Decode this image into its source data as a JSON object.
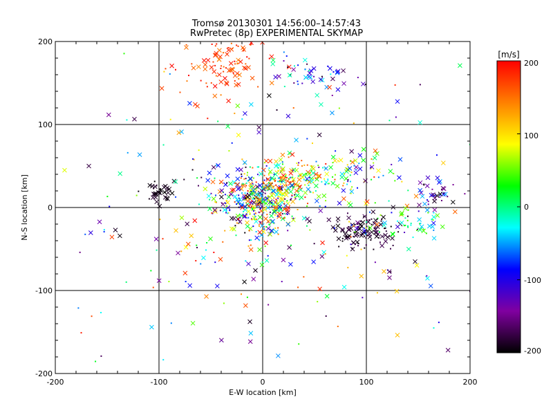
{
  "chart_data": {
    "type": "scatter",
    "title": "Tromsø 20130301 14:56:00–14:57:43",
    "subtitle": "RwPretec (8p) EXPERIMENTAL SKYMAP",
    "xlabel": "E-W location [km]",
    "ylabel": "N-S location [km]",
    "xlim": [
      -200,
      200
    ],
    "ylim": [
      -200,
      200
    ],
    "x_ticks": [
      -200,
      -100,
      0,
      100,
      200
    ],
    "y_ticks": [
      -200,
      -100,
      0,
      100,
      200
    ],
    "x_tick_labels": [
      "-200",
      "-100",
      "0",
      "100",
      "200"
    ],
    "y_tick_labels": [
      "-200",
      "-100",
      "0",
      "100",
      "200"
    ],
    "grid": true,
    "marker_style": "cross (large) and dot (small)",
    "colorbar": {
      "label": "[m/s]",
      "range": [
        -200,
        200
      ],
      "ticks": [
        200,
        100,
        0,
        -100,
        -200
      ],
      "tick_labels": [
        "200",
        "100",
        "0",
        "-100",
        "-200"
      ],
      "colors": [
        "#000000",
        "#8000a0",
        "#0000ff",
        "#00ffff",
        "#00ff00",
        "#ffff00",
        "#ff8000",
        "#ff0000"
      ],
      "placement": "right"
    },
    "clusters": [
      {
        "x": -5,
        "y": 8,
        "sx": 20,
        "sy": 18,
        "n": 380,
        "vmin": -200,
        "vmax": 200
      },
      {
        "x": 25,
        "y": 35,
        "sx": 22,
        "sy": 12,
        "n": 160,
        "vmin": -60,
        "vmax": 200
      },
      {
        "x": 95,
        "y": -28,
        "sx": 14,
        "sy": 10,
        "n": 110,
        "vmin": -200,
        "vmax": -170
      },
      {
        "x": 120,
        "y": -22,
        "sx": 25,
        "sy": 14,
        "n": 40,
        "vmin": -200,
        "vmax": 180
      },
      {
        "x": -35,
        "y": 175,
        "sx": 22,
        "sy": 18,
        "n": 110,
        "vmin": 140,
        "vmax": 200
      },
      {
        "x": 45,
        "y": 160,
        "sx": 20,
        "sy": 10,
        "n": 50,
        "vmin": -200,
        "vmax": 0
      },
      {
        "x": -100,
        "y": 20,
        "sx": 8,
        "sy": 7,
        "n": 40,
        "vmin": -200,
        "vmax": -180
      },
      {
        "x": 165,
        "y": 15,
        "sx": 12,
        "sy": 8,
        "n": 40,
        "vmin": -200,
        "vmax": -40
      },
      {
        "x": 155,
        "y": -20,
        "sx": 12,
        "sy": 10,
        "n": 30,
        "vmin": -40,
        "vmax": 60
      },
      {
        "x": 80,
        "y": 40,
        "sx": 25,
        "sy": 15,
        "n": 60,
        "vmin": -120,
        "vmax": 120
      },
      {
        "x": 0,
        "y": 0,
        "sx": 95,
        "sy": 85,
        "n": 320,
        "vmin": -200,
        "vmax": 200
      }
    ]
  }
}
